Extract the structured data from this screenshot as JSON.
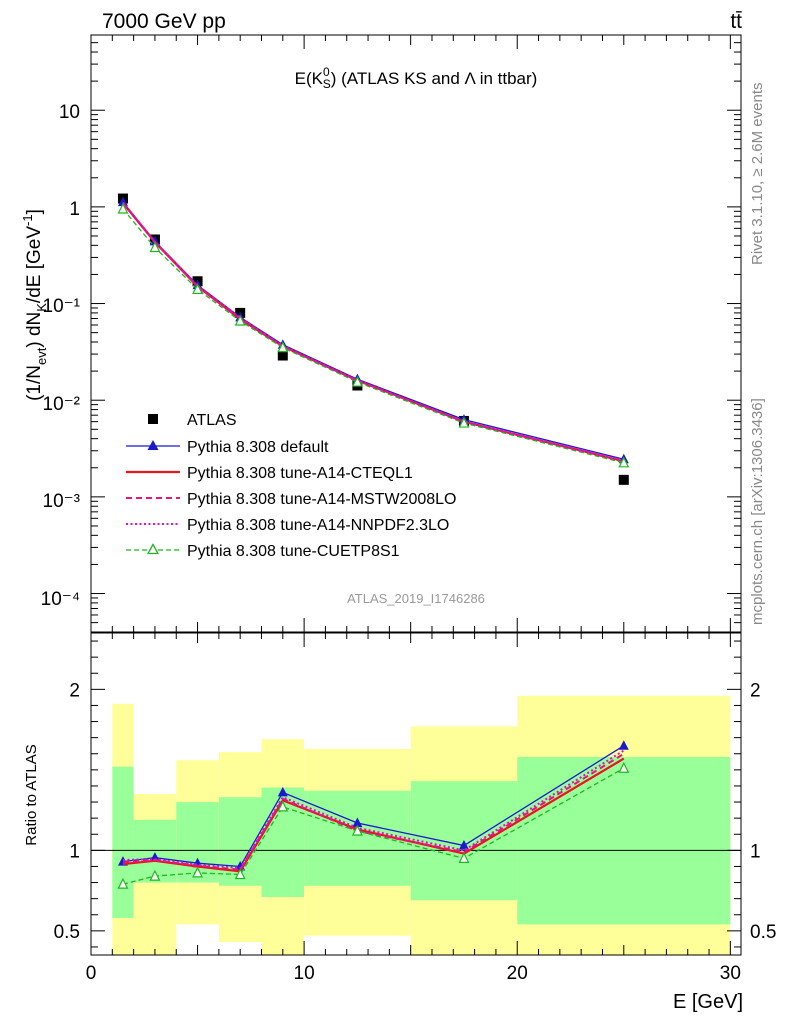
{
  "header": {
    "left": "7000 GeV pp",
    "right": "tt̄"
  },
  "side_labels": {
    "rivet": "Rivet 3.1.10, ≥ 2.6M events",
    "mcplots": "mcplots.cern.ch [arXiv:1306.3436]"
  },
  "chart_data": [
    {
      "type": "line",
      "title": "E(K⁰S) (ATLAS KS and Λ in ttbar)",
      "watermark": "ATLAS_2019_I1746286",
      "ylabel": "(1/Nevt) dNK/dE [GeV⁻¹]",
      "yscale": "log",
      "ylim": [
        4e-05,
        60
      ],
      "xlim": [
        0,
        30.5
      ],
      "ytick_labels": [
        "10",
        "1",
        "10⁻¹",
        "10⁻²",
        "10⁻³",
        "10⁻⁴"
      ],
      "legend_position": "lower-left",
      "x": [
        1.5,
        3,
        5,
        7,
        9,
        12.5,
        17.5,
        25
      ],
      "series": [
        {
          "name": "ATLAS",
          "color": "#000000",
          "marker": "square",
          "values": [
            1.22,
            0.46,
            0.17,
            0.08,
            0.029,
            0.0142,
            0.0061,
            0.0015
          ]
        },
        {
          "name": "Pythia 8.308 default",
          "color": "#1a1acc",
          "marker": "triangle",
          "line": "solid",
          "values": [
            1.12,
            0.44,
            0.155,
            0.072,
            0.0375,
            0.0165,
            0.0063,
            0.00245
          ]
        },
        {
          "name": "Pythia 8.308 tune-A14-CTEQL1",
          "color": "#e8141e",
          "line": "solid",
          "values": [
            1.09,
            0.43,
            0.15,
            0.069,
            0.036,
            0.016,
            0.006,
            0.00234
          ]
        },
        {
          "name": "Pythia 8.308 tune-A14-MSTW2008LO",
          "color": "#e8147a",
          "line": "dashed",
          "values": [
            1.1,
            0.432,
            0.151,
            0.07,
            0.0362,
            0.0159,
            0.00598,
            0.00232
          ]
        },
        {
          "name": "Pythia 8.308 tune-A14-NNPDF2.3LO",
          "color": "#d414d4",
          "line": "dotted",
          "values": [
            1.11,
            0.435,
            0.152,
            0.071,
            0.0365,
            0.0161,
            0.00605,
            0.00238
          ]
        },
        {
          "name": "Pythia 8.308 tune-CUETP8S1",
          "color": "#22b422",
          "marker": "open-triangle",
          "line": "dashed",
          "values": [
            0.95,
            0.38,
            0.14,
            0.066,
            0.035,
            0.0154,
            0.0058,
            0.00225
          ]
        }
      ]
    },
    {
      "type": "line",
      "ylabel": "Ratio to ATLAS",
      "xlabel": "E [GeV]",
      "ylim": [
        0.35,
        2.35
      ],
      "xlim": [
        0,
        30.5
      ],
      "xticks": [
        0,
        10,
        20,
        30
      ],
      "yticks": [
        0.5,
        1,
        2
      ],
      "x": [
        1.5,
        3,
        5,
        7,
        9,
        12.5,
        17.5,
        25
      ],
      "bands": {
        "edges": [
          1,
          2,
          4,
          6,
          8,
          10,
          15,
          20,
          30
        ],
        "inner_lo": [
          0.58,
          0.8,
          0.8,
          0.78,
          0.71,
          0.78,
          0.69,
          0.54
        ],
        "inner_hi": [
          1.52,
          1.19,
          1.3,
          1.33,
          1.39,
          1.37,
          1.43,
          1.58
        ],
        "outer_lo": [
          0.35,
          0.35,
          0.54,
          0.43,
          0.35,
          0.47,
          0.35,
          0.35
        ],
        "outer_hi": [
          1.91,
          1.35,
          1.56,
          1.61,
          1.69,
          1.63,
          1.77,
          1.96
        ],
        "inner_color": "#99ff99",
        "outer_color": "#ffff99"
      },
      "series": [
        {
          "name": "Pythia 8.308 default",
          "color": "#1a1acc",
          "values": [
            0.93,
            0.955,
            0.92,
            0.9,
            1.36,
            1.17,
            1.03,
            1.65
          ]
        },
        {
          "name": "Pythia 8.308 tune-A14-CTEQL1",
          "color": "#e8141e",
          "values": [
            0.915,
            0.935,
            0.9,
            0.87,
            1.31,
            1.13,
            0.98,
            1.57
          ]
        },
        {
          "name": "Pythia 8.308 tune-A14-MSTW2008LO",
          "color": "#e8147a",
          "values": [
            0.925,
            0.94,
            0.905,
            0.88,
            1.32,
            1.12,
            0.99,
            1.6
          ]
        },
        {
          "name": "Pythia 8.308 tune-A14-NNPDF2.3LO",
          "color": "#d414d4",
          "values": [
            0.94,
            0.945,
            0.91,
            0.89,
            1.33,
            1.14,
            1.0,
            1.62
          ]
        },
        {
          "name": "Pythia 8.308 tune-CUETP8S1",
          "color": "#22b422",
          "values": [
            0.79,
            0.84,
            0.86,
            0.85,
            1.27,
            1.12,
            0.95,
            1.51
          ]
        }
      ]
    }
  ]
}
